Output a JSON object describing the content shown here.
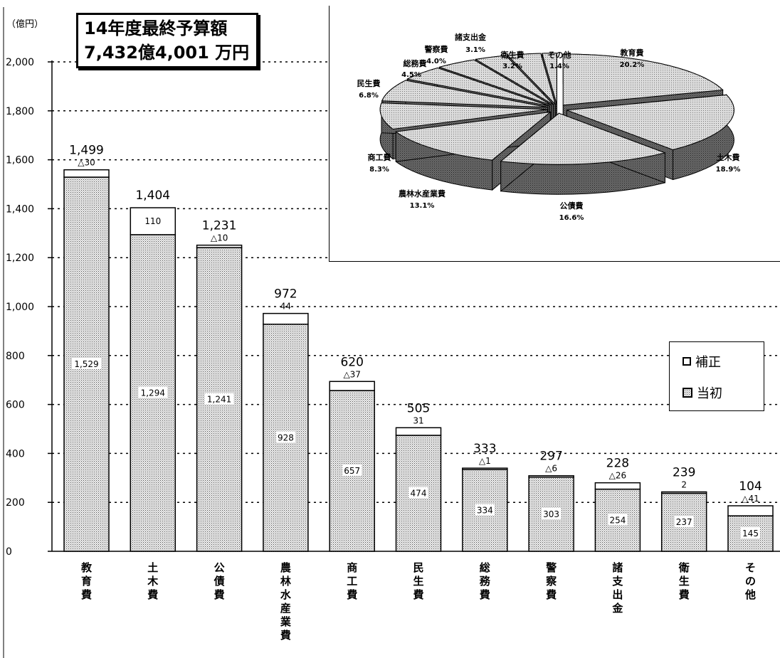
{
  "chart_data": [
    {
      "type": "bar",
      "unit_label": "（億円）",
      "title_lines": [
        "14年度最終予算額",
        "7,432億4,001 万円"
      ],
      "ylim": [
        0,
        2000
      ],
      "y_ticks": [
        "0",
        "200",
        "400",
        "600",
        "800",
        "1,000",
        "1,200",
        "1,400",
        "1,600",
        "1,800",
        "2,000"
      ],
      "grid": "dotted",
      "categories": [
        "教育費",
        "土木費",
        "公債費",
        "農林水産業費",
        "商工費",
        "民生費",
        "総務費",
        "警察費",
        "諸支出金",
        "衛生費",
        "その他"
      ],
      "category_labels": [
        [
          "教",
          "育",
          "費"
        ],
        [
          "土",
          "木",
          "費"
        ],
        [
          "公",
          "債",
          "費"
        ],
        [
          "農",
          "林",
          "水",
          "産",
          "業",
          "費"
        ],
        [
          "商",
          "工",
          "費"
        ],
        [
          "民",
          "生",
          "費"
        ],
        [
          "総",
          "務",
          "費"
        ],
        [
          "警",
          "察",
          "費"
        ],
        [
          "諸",
          "支",
          "出",
          "金"
        ],
        [
          "衛",
          "生",
          "費"
        ],
        [
          "そ",
          "の",
          "他"
        ]
      ],
      "series": [
        {
          "name": "当初",
          "values": [
            1529,
            1294,
            1241,
            928,
            657,
            474,
            334,
            303,
            254,
            237,
            145
          ],
          "labels": [
            "1,529",
            "1,294",
            "1,241",
            "928",
            "657",
            "474",
            "334",
            "303",
            "254",
            "237",
            "145"
          ]
        },
        {
          "name": "補正",
          "values": [
            -30,
            110,
            -10,
            44,
            -37,
            31,
            -1,
            -6,
            -26,
            2,
            -41
          ],
          "labels": [
            "△30",
            "110",
            "△10",
            "44",
            "△37",
            "31",
            "△1",
            "△6",
            "△26",
            "2",
            "△41"
          ]
        }
      ],
      "totals": [
        1499,
        1404,
        1231,
        972,
        620,
        505,
        333,
        297,
        228,
        239,
        104
      ],
      "total_labels": [
        "1,499",
        "1,404",
        "1,231",
        "972",
        "620",
        "505",
        "333",
        "297",
        "228",
        "239",
        "104"
      ],
      "legend": [
        {
          "label": "補正",
          "pattern": "white"
        },
        {
          "label": "当初",
          "pattern": "dotted"
        }
      ],
      "legend_position": "right"
    },
    {
      "type": "pie",
      "style": "3d-exploded",
      "slices": [
        {
          "label": "教育費",
          "value": 20.2,
          "pct": "20.2%"
        },
        {
          "label": "土木費",
          "value": 18.9,
          "pct": "18.9%"
        },
        {
          "label": "公債費",
          "value": 16.6,
          "pct": "16.6%"
        },
        {
          "label": "農林水産業費",
          "value": 13.1,
          "pct": "13.1%"
        },
        {
          "label": "商工費",
          "value": 8.3,
          "pct": "8.3%"
        },
        {
          "label": "民生費",
          "value": 6.8,
          "pct": "6.8%"
        },
        {
          "label": "総務費",
          "value": 4.5,
          "pct": "4.5%"
        },
        {
          "label": "警察費",
          "value": 4.0,
          "pct": "4.0%"
        },
        {
          "label": "諸支出金",
          "value": 3.1,
          "pct": "3.1%"
        },
        {
          "label": "衛生費",
          "value": 3.2,
          "pct": "3.2%"
        },
        {
          "label": "その他",
          "value": 1.4,
          "pct": "1.4%"
        }
      ]
    }
  ]
}
